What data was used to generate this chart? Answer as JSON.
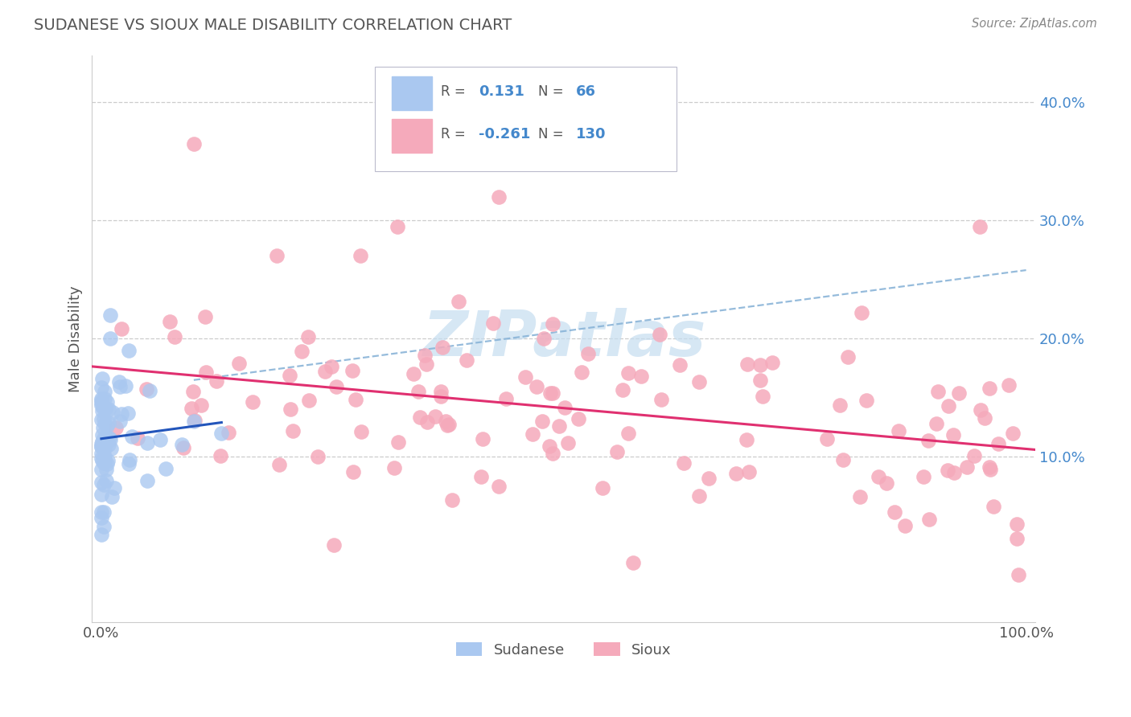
{
  "title": "SUDANESE VS SIOUX MALE DISABILITY CORRELATION CHART",
  "source": "Source: ZipAtlas.com",
  "ylabel": "Male Disability",
  "xlim": [
    -0.01,
    1.01
  ],
  "ylim": [
    -0.04,
    0.44
  ],
  "sudanese_R": 0.131,
  "sudanese_N": 66,
  "sioux_R": -0.261,
  "sioux_N": 130,
  "sudanese_color": "#aac8f0",
  "sioux_color": "#f5aabb",
  "sudanese_line_color": "#2255bb",
  "sioux_line_color": "#e03070",
  "watermark_color": "#c5ddf0",
  "background_color": "#ffffff",
  "grid_color": "#cccccc",
  "title_color": "#555555",
  "ytick_color": "#4488cc",
  "legend_label_color": "#4488cc",
  "legend_R_color": "#4488cc"
}
